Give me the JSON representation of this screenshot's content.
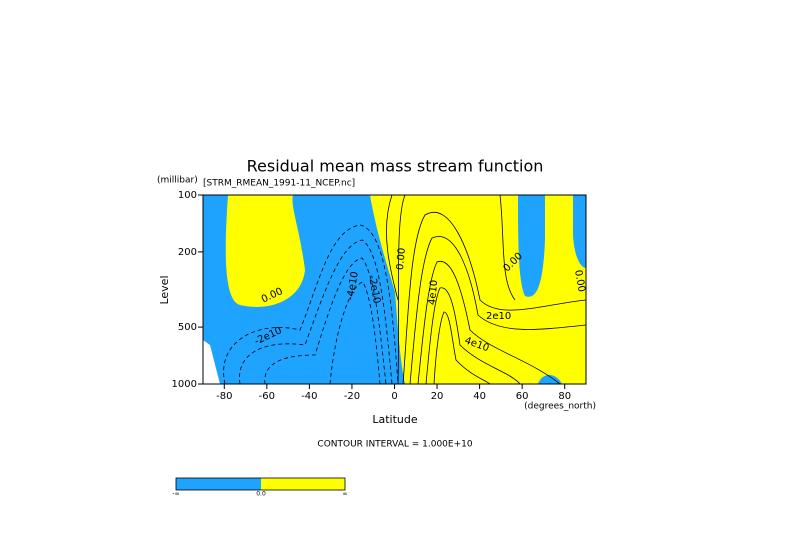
{
  "chart_data": {
    "type": "contour",
    "title": "Residual mean mass stream function",
    "subtitle": "[STRM_RMEAN_1991-11_NCEP.nc]",
    "y_unit": "(millibar)",
    "y_label": "Level",
    "x_label": "Latitude",
    "x_unit": "(degrees_north)",
    "note": "CONTOUR INTERVAL = 1.000E+10",
    "xlim": [
      -90,
      90
    ],
    "xticks": [
      -80,
      -60,
      -40,
      -20,
      0,
      20,
      40,
      60,
      80
    ],
    "ylim": [
      1000,
      100
    ],
    "yticks": [
      100,
      200,
      500,
      1000
    ],
    "log_y": true,
    "colors": [
      "#1ea3ff",
      "#ffff00"
    ],
    "contour_labels": [
      "0.00",
      "-2e10",
      "-4e10",
      "-2e10",
      "0.00",
      "4e10",
      "2e10",
      "4e10",
      "0.00",
      "0.00"
    ],
    "colorbar_labels": [
      "-∞",
      "0.0",
      "∞"
    ]
  }
}
